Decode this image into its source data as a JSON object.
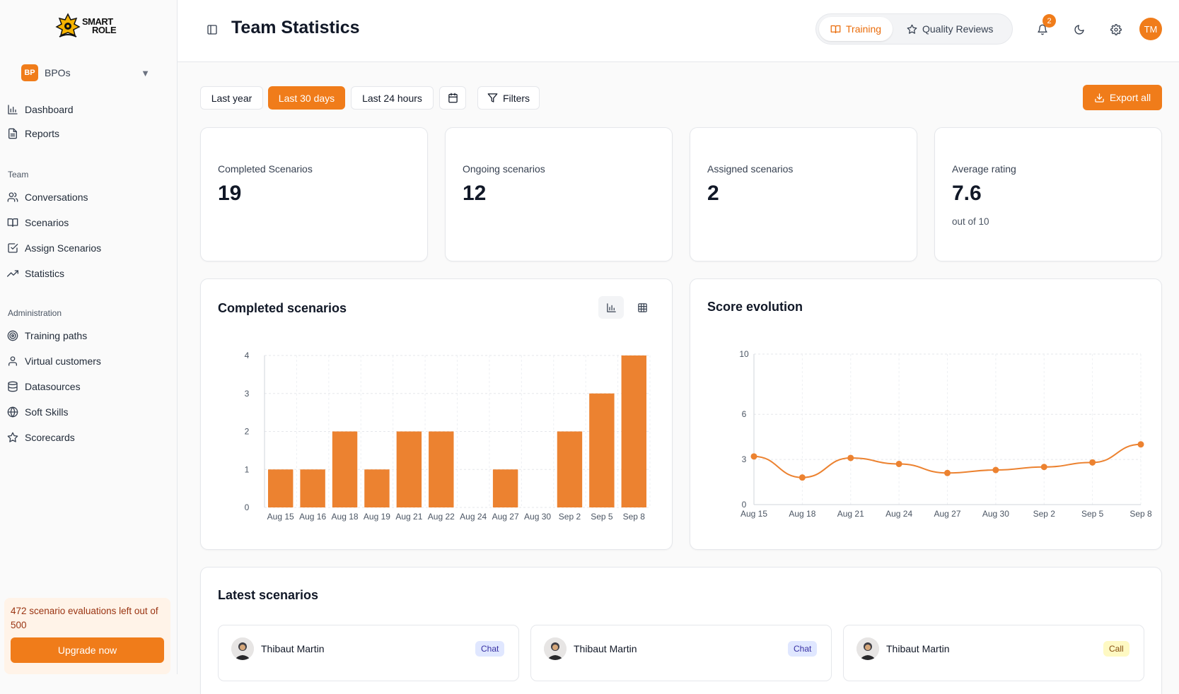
{
  "brand": {
    "logo_line1": "SMART",
    "logo_line2": "ROLE"
  },
  "org": {
    "badge": "BP",
    "name": "BPOs"
  },
  "sidebar": {
    "main": [
      {
        "label": "Dashboard"
      },
      {
        "label": "Reports"
      }
    ],
    "team_header": "Team",
    "team": [
      {
        "label": "Conversations"
      },
      {
        "label": "Scenarios"
      },
      {
        "label": "Assign Scenarios"
      },
      {
        "label": "Statistics"
      }
    ],
    "admin_header": "Administration",
    "admin": [
      {
        "label": "Training paths"
      },
      {
        "label": "Virtual customers"
      },
      {
        "label": "Datasources"
      },
      {
        "label": "Soft Skills"
      },
      {
        "label": "Scorecards"
      }
    ]
  },
  "quota": {
    "text": "472 scenario evaluations left out of 500",
    "button": "Upgrade now"
  },
  "header": {
    "title": "Team Statistics",
    "modes": [
      {
        "label": "Training",
        "active": true
      },
      {
        "label": "Quality Reviews",
        "active": false
      }
    ],
    "notifications": "2",
    "avatar_initials": "TM"
  },
  "filters": {
    "ranges": [
      {
        "label": "Last year"
      },
      {
        "label": "Last 30 days"
      },
      {
        "label": "Last 24 hours"
      }
    ],
    "filters_label": "Filters",
    "export_label": "Export all"
  },
  "stats": [
    {
      "label": "Completed Scenarios",
      "value": "19"
    },
    {
      "label": "Ongoing scenarios",
      "value": "12"
    },
    {
      "label": "Assigned scenarios",
      "value": "2"
    },
    {
      "label": "Average rating",
      "value": "7.6",
      "sub": "out of 10"
    }
  ],
  "colors": {
    "accent": "#f07c1a",
    "bar": "#ec8230"
  },
  "chart_data": [
    {
      "type": "bar",
      "title": "Completed scenarios",
      "categories": [
        "Aug 15",
        "Aug 16",
        "Aug 18",
        "Aug 19",
        "Aug 21",
        "Aug 22",
        "Aug 24",
        "Aug 27",
        "Aug 30",
        "Sep 2",
        "Sep 5",
        "Sep 8"
      ],
      "values": [
        1,
        1,
        2,
        1,
        2,
        2,
        0,
        1,
        0,
        2,
        3,
        4
      ],
      "yticks": [
        0,
        1,
        2,
        3,
        4
      ],
      "ylim": [
        0,
        4
      ],
      "xlabel": "",
      "ylabel": ""
    },
    {
      "type": "line",
      "title": "Score evolution",
      "categories": [
        "Aug 15",
        "Aug 18",
        "Aug 21",
        "Aug 24",
        "Aug 27",
        "Aug 30",
        "Sep 2",
        "Sep 5",
        "Sep 8"
      ],
      "values": [
        3.2,
        1.8,
        3.1,
        2.7,
        2.1,
        2.3,
        2.5,
        2.8,
        4.0
      ],
      "yticks": [
        0,
        3,
        6,
        10
      ],
      "ylim": [
        0,
        10
      ],
      "xlabel": "",
      "ylabel": ""
    }
  ],
  "latest": {
    "title": "Latest scenarios",
    "items": [
      {
        "name": "Thibaut Martin",
        "tag": "Chat"
      },
      {
        "name": "Thibaut Martin",
        "tag": "Chat"
      },
      {
        "name": "Thibaut Martin",
        "tag": "Call"
      }
    ]
  }
}
